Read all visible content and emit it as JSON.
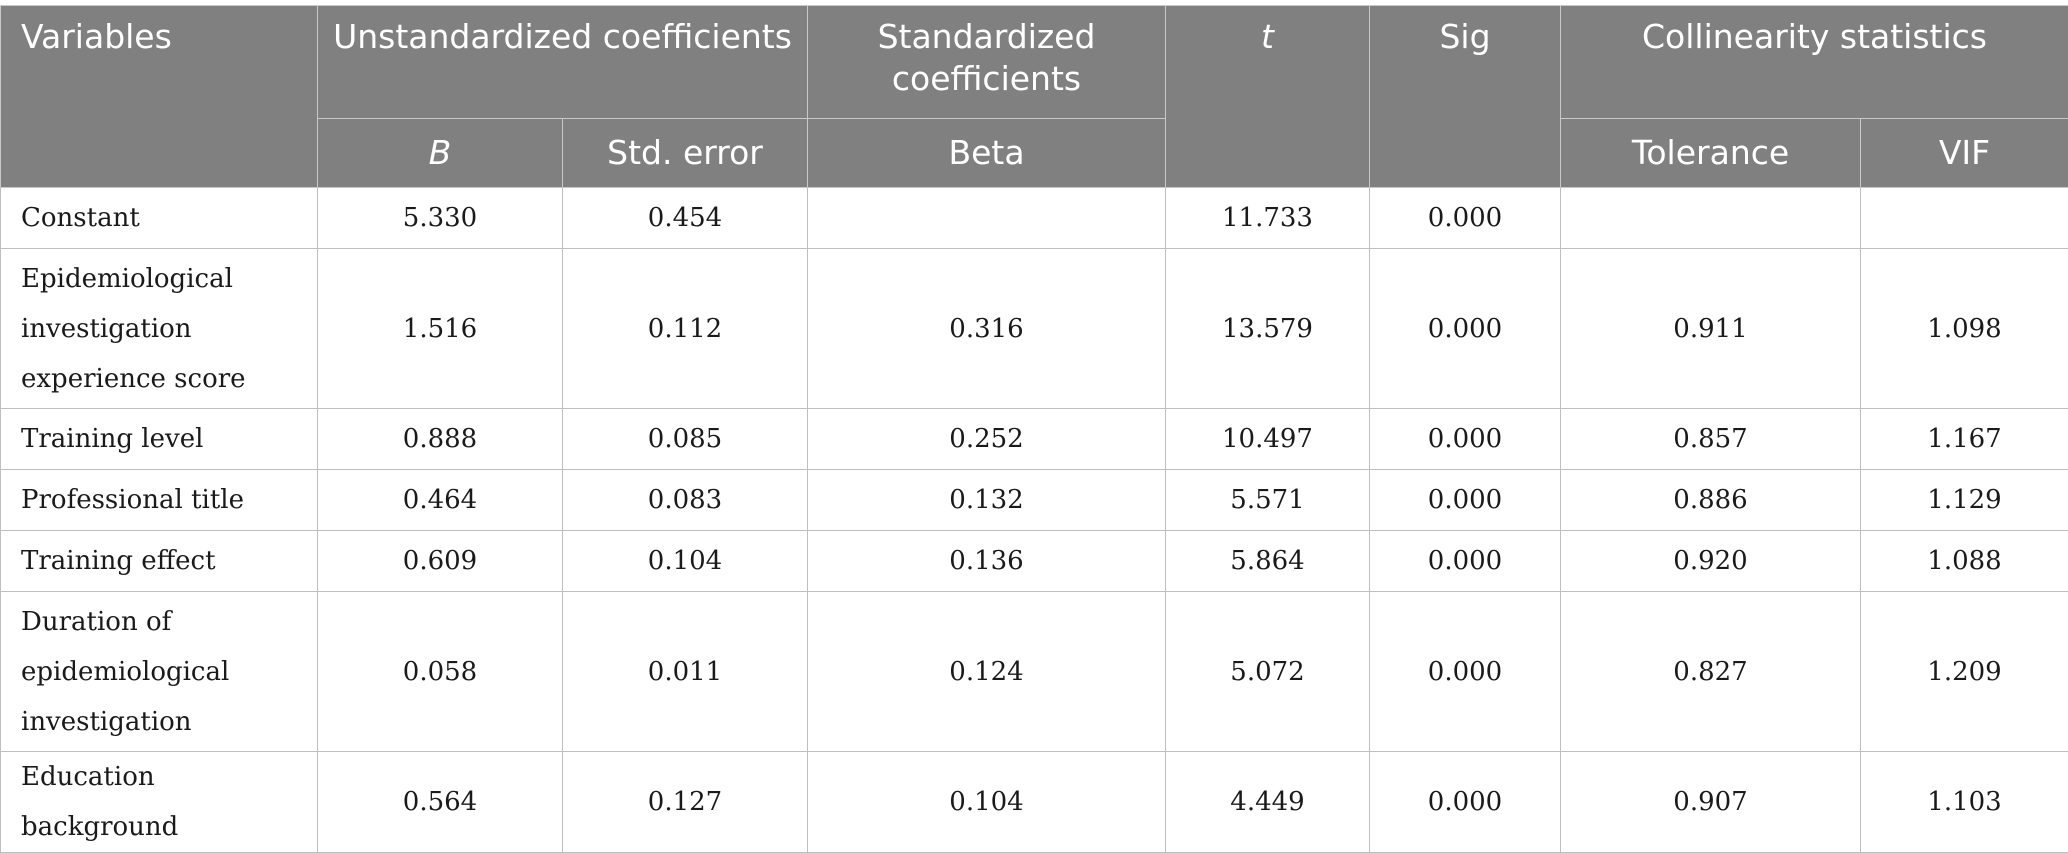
{
  "headers": {
    "variables": "Variables",
    "unstandardized": "Unstandardized coefficients",
    "standardized": "Standardized coefficients",
    "t": "t",
    "sig": "Sig",
    "collinearity": "Collinearity statistics",
    "b": "B",
    "std_error": "Std. error",
    "beta": "Beta",
    "tolerance": "Tolerance",
    "vif": "VIF"
  },
  "rows": [
    {
      "variable": "Constant",
      "b": "5.330",
      "std_error": "0.454",
      "beta": "",
      "t": "11.733",
      "sig": "0.000",
      "tolerance": "",
      "vif": ""
    },
    {
      "variable": "Epidemiological investigation experience score",
      "b": "1.516",
      "std_error": "0.112",
      "beta": "0.316",
      "t": "13.579",
      "sig": "0.000",
      "tolerance": "0.911",
      "vif": "1.098"
    },
    {
      "variable": "Training level",
      "b": "0.888",
      "std_error": "0.085",
      "beta": "0.252",
      "t": "10.497",
      "sig": "0.000",
      "tolerance": "0.857",
      "vif": "1.167"
    },
    {
      "variable": "Professional title",
      "b": "0.464",
      "std_error": "0.083",
      "beta": "0.132",
      "t": "5.571",
      "sig": "0.000",
      "tolerance": "0.886",
      "vif": "1.129"
    },
    {
      "variable": "Training effect",
      "b": "0.609",
      "std_error": "0.104",
      "beta": "0.136",
      "t": "5.864",
      "sig": "0.000",
      "tolerance": "0.920",
      "vif": "1.088"
    },
    {
      "variable": "Duration of epidemiological investigation",
      "b": "0.058",
      "std_error": "0.011",
      "beta": "0.124",
      "t": "5.072",
      "sig": "0.000",
      "tolerance": "0.827",
      "vif": "1.209"
    },
    {
      "variable": "Education background",
      "b": "0.564",
      "std_error": "0.127",
      "beta": "0.104",
      "t": "4.449",
      "sig": "0.000",
      "tolerance": "0.907",
      "vif": "1.103"
    }
  ]
}
